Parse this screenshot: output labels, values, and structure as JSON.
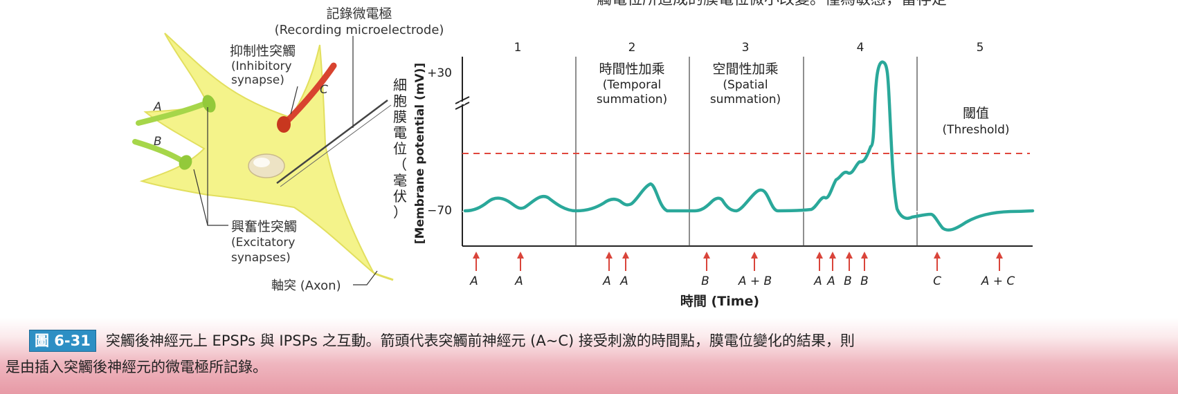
{
  "header_snippet": "觸電位所造成的膜電位微小改變。僅為敏感，當存定",
  "neuron": {
    "recording_label_zh": "記錄微電極",
    "recording_label_en": "(Recording microelectrode)",
    "inhibitory_label_zh": "抑制性突觸",
    "inhibitory_label_en1": "(Inhibitory",
    "inhibitory_label_en2": "synapse)",
    "excitatory_label_zh": "興奮性突觸",
    "excitatory_label_en1": "(Excitatory",
    "excitatory_label_en2": "synapses)",
    "axon_label": "軸突 (Axon)",
    "synapse_a": "A",
    "synapse_b": "B",
    "synapse_c": "C"
  },
  "graph": {
    "y_label_zh_chars": [
      "細",
      "胞",
      "膜",
      "電",
      "位",
      "（",
      "毫",
      "伏",
      "）"
    ],
    "y_label_en": "[Membrane potential (mV)]",
    "y_tick_top": "+30",
    "y_tick_rest": "−70",
    "x_label_zh": "時間",
    "x_label_en": "(Time)",
    "sections": [
      {
        "num": "1",
        "zh": "",
        "en1": "",
        "en2": ""
      },
      {
        "num": "2",
        "zh": "時間性加乘",
        "en1": "(Temporal",
        "en2": "summation)"
      },
      {
        "num": "3",
        "zh": "空間性加乘",
        "en1": "(Spatial",
        "en2": "summation)"
      },
      {
        "num": "4",
        "zh": "",
        "en1": "",
        "en2": ""
      },
      {
        "num": "5",
        "zh": "閾值",
        "en1": "(Threshold)",
        "en2": ""
      }
    ],
    "arrows": [
      "A",
      "A",
      "A",
      "A",
      "B",
      "A + B",
      "A",
      "A",
      "B",
      "B",
      "C",
      "A + C"
    ]
  },
  "caption": {
    "fig_label": "圖 6-31",
    "line1": "突觸後神經元上 EPSPs 與 IPSPs 之互動。箭頭代表突觸前神經元 (A~C) 接受刺激的時間點，膜電位變化的結果，則",
    "line2": "是由插入突觸後神經元的微電極所記錄。"
  },
  "colors": {
    "trace": "#2aa89a",
    "threshold": "#e0463c",
    "arrow": "#d9443a",
    "neuron": "#f4f38a",
    "synapse_excitatory": "#a6d64a",
    "synapse_inhibitory": "#d8432f",
    "fig_tag": "#2d8fc4"
  }
}
